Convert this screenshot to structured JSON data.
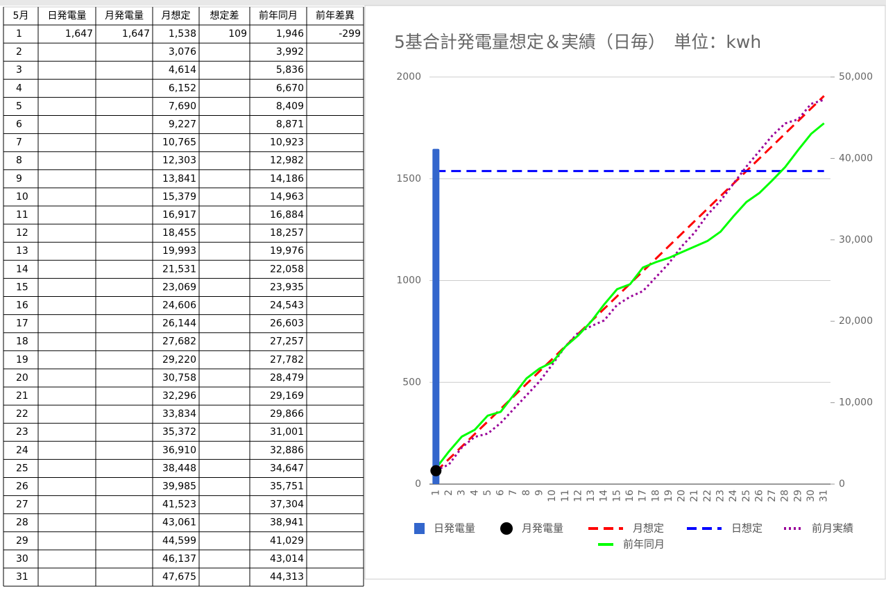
{
  "table": {
    "header": [
      "5月",
      "日発電量",
      "月発電量",
      "月想定",
      "想定差",
      "前年同月",
      "前年差異"
    ],
    "rows": [
      [
        "1",
        "1,647",
        "1,647",
        "1,538",
        "109",
        "1,946",
        "-299"
      ],
      [
        "2",
        null,
        null,
        "3,076",
        null,
        "3,992",
        null
      ],
      [
        "3",
        null,
        null,
        "4,614",
        null,
        "5,836",
        null
      ],
      [
        "4",
        null,
        null,
        "6,152",
        null,
        "6,670",
        null
      ],
      [
        "5",
        null,
        null,
        "7,690",
        null,
        "8,409",
        null
      ],
      [
        "6",
        null,
        null,
        "9,227",
        null,
        "8,871",
        null
      ],
      [
        "7",
        null,
        null,
        "10,765",
        null,
        "10,923",
        null
      ],
      [
        "8",
        null,
        null,
        "12,303",
        null,
        "12,982",
        null
      ],
      [
        "9",
        null,
        null,
        "13,841",
        null,
        "14,186",
        null
      ],
      [
        "10",
        null,
        null,
        "15,379",
        null,
        "14,963",
        null
      ],
      [
        "11",
        null,
        null,
        "16,917",
        null,
        "16,884",
        null
      ],
      [
        "12",
        null,
        null,
        "18,455",
        null,
        "18,257",
        null
      ],
      [
        "13",
        null,
        null,
        "19,993",
        null,
        "19,976",
        null
      ],
      [
        "14",
        null,
        null,
        "21,531",
        null,
        "22,058",
        null
      ],
      [
        "15",
        null,
        null,
        "23,069",
        null,
        "23,935",
        null
      ],
      [
        "16",
        null,
        null,
        "24,606",
        null,
        "24,543",
        null
      ],
      [
        "17",
        null,
        null,
        "26,144",
        null,
        "26,603",
        null
      ],
      [
        "18",
        null,
        null,
        "27,682",
        null,
        "27,257",
        null
      ],
      [
        "19",
        null,
        null,
        "29,220",
        null,
        "27,782",
        null
      ],
      [
        "20",
        null,
        null,
        "30,758",
        null,
        "28,479",
        null
      ],
      [
        "21",
        null,
        null,
        "32,296",
        null,
        "29,169",
        null
      ],
      [
        "22",
        null,
        null,
        "33,834",
        null,
        "29,866",
        null
      ],
      [
        "23",
        null,
        null,
        "35,372",
        null,
        "31,001",
        null
      ],
      [
        "24",
        null,
        null,
        "36,910",
        null,
        "32,886",
        null
      ],
      [
        "25",
        null,
        null,
        "38,448",
        null,
        "34,647",
        null
      ],
      [
        "26",
        null,
        null,
        "39,985",
        null,
        "35,751",
        null
      ],
      [
        "27",
        null,
        null,
        "41,523",
        null,
        "37,304",
        null
      ],
      [
        "28",
        null,
        null,
        "43,061",
        null,
        "38,941",
        null
      ],
      [
        "29",
        null,
        null,
        "44,599",
        null,
        "41,029",
        null
      ],
      [
        "30",
        null,
        null,
        "46,137",
        null,
        "43,014",
        null
      ],
      [
        "31",
        null,
        null,
        "47,675",
        null,
        "44,313",
        null
      ]
    ]
  },
  "chart_data": {
    "type": "combo",
    "title": "5基合計発電量想定＆実績（日毎）　単位：kwh",
    "categories": [
      "1",
      "2",
      "3",
      "4",
      "5",
      "6",
      "7",
      "8",
      "9",
      "10",
      "11",
      "12",
      "13",
      "14",
      "15",
      "16",
      "17",
      "18",
      "19",
      "20",
      "21",
      "22",
      "23",
      "24",
      "25",
      "26",
      "27",
      "28",
      "29",
      "30",
      "31"
    ],
    "ylim": [
      0,
      2000
    ],
    "yticks": [
      0,
      500,
      1000,
      1500,
      2000
    ],
    "y2lim": [
      0,
      50000
    ],
    "y2ticks": [
      0,
      {
        "value": 10000,
        "label": "10,000"
      },
      {
        "value": 20000,
        "label": "20,000"
      },
      {
        "value": 30000,
        "label": "30,000"
      },
      {
        "value": 40000,
        "label": "40,000"
      },
      {
        "value": 50000,
        "label": "50,000"
      }
    ],
    "grid": true,
    "legend": "bottom",
    "series": [
      {
        "name": "日発電量",
        "type": "bar",
        "axis": "y",
        "color": "#3366cc",
        "values": [
          1647,
          null,
          null,
          null,
          null,
          null,
          null,
          null,
          null,
          null,
          null,
          null,
          null,
          null,
          null,
          null,
          null,
          null,
          null,
          null,
          null,
          null,
          null,
          null,
          null,
          null,
          null,
          null,
          null,
          null,
          null
        ]
      },
      {
        "name": "月発電量",
        "type": "scatter",
        "axis": "y2",
        "color": "#000000",
        "values": [
          1647,
          null,
          null,
          null,
          null,
          null,
          null,
          null,
          null,
          null,
          null,
          null,
          null,
          null,
          null,
          null,
          null,
          null,
          null,
          null,
          null,
          null,
          null,
          null,
          null,
          null,
          null,
          null,
          null,
          null,
          null
        ]
      },
      {
        "name": "月想定",
        "type": "line",
        "axis": "y2",
        "color": "#ff0000",
        "dash": "dashed",
        "values": [
          1538,
          3076,
          4614,
          6152,
          7690,
          9227,
          10765,
          12303,
          13841,
          15379,
          16917,
          18455,
          19993,
          21531,
          23069,
          24606,
          26144,
          27682,
          29220,
          30758,
          32296,
          33834,
          35372,
          36910,
          38448,
          39985,
          41523,
          43061,
          44599,
          46137,
          47675
        ]
      },
      {
        "name": "日想定",
        "type": "line",
        "axis": "y",
        "color": "#0000ff",
        "dash": "dashed",
        "values": [
          1538,
          1538,
          1538,
          1538,
          1538,
          1538,
          1538,
          1538,
          1538,
          1538,
          1538,
          1538,
          1538,
          1538,
          1538,
          1538,
          1538,
          1538,
          1538,
          1538,
          1538,
          1538,
          1538,
          1538,
          1538,
          1538,
          1538,
          1538,
          1538,
          1538,
          1538
        ]
      },
      {
        "name": "前月実績",
        "type": "line",
        "axis": "y2",
        "color": "#990099",
        "dash": "dotted",
        "values": [
          1700,
          2400,
          4500,
          5800,
          6200,
          7500,
          9200,
          10900,
          12600,
          14700,
          16900,
          18600,
          19400,
          20100,
          22000,
          23000,
          23700,
          25400,
          27100,
          29200,
          30900,
          33100,
          34800,
          36900,
          39000,
          40900,
          42800,
          44300,
          44800,
          46700,
          47200
        ]
      },
      {
        "name": "前年同月",
        "type": "line",
        "axis": "y2",
        "color": "#00ff00",
        "dash": "solid",
        "values": [
          1946,
          3992,
          5836,
          6670,
          8409,
          8871,
          10923,
          12982,
          14186,
          14963,
          16884,
          18257,
          19976,
          22058,
          23935,
          24543,
          26603,
          27257,
          27782,
          28479,
          29169,
          29866,
          31001,
          32886,
          34647,
          35751,
          37304,
          38941,
          41029,
          43014,
          44313
        ]
      }
    ]
  }
}
